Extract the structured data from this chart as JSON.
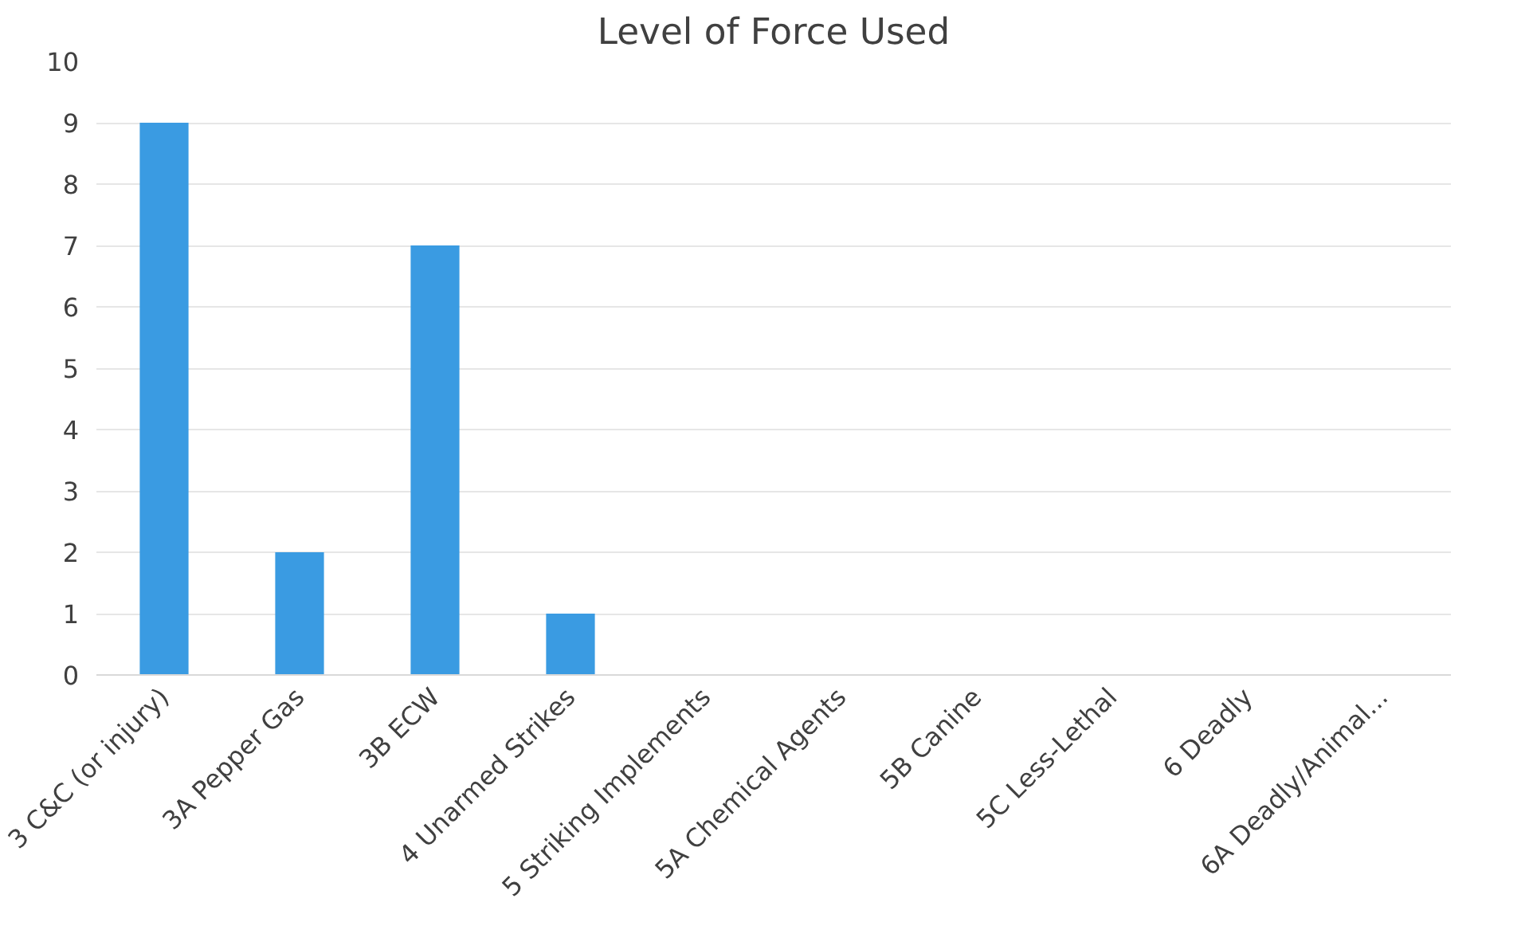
{
  "chart_data": {
    "type": "bar",
    "title": "Level of Force Used",
    "categories": [
      "3 C&C (or injury)",
      "3A Pepper Gas",
      "3B ECW",
      "4 Unarmed Strikes",
      "5 Striking Implements",
      "5A Chemical Agents",
      "5B Canine",
      "5C Less-Lethal",
      "6 Deadly",
      "6A Deadly/Animal..."
    ],
    "values": [
      9,
      2,
      7,
      1,
      0,
      0,
      0,
      0,
      0,
      0
    ],
    "color": "#3a9be2",
    "ylim": [
      0,
      10
    ],
    "yticks": [
      0,
      1,
      2,
      3,
      4,
      5,
      6,
      7,
      8,
      9,
      10
    ],
    "grid": "y"
  }
}
